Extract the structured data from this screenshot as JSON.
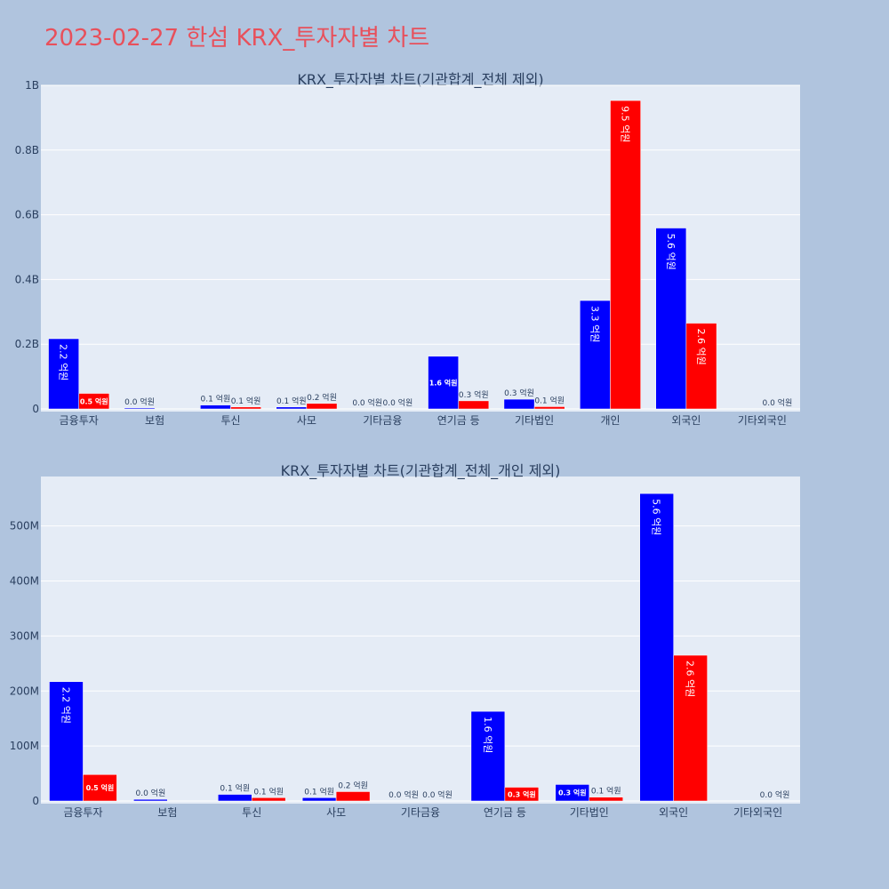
{
  "page": {
    "title": "2023-02-27 한섬 KRX_투자자별 차트"
  },
  "colors": {
    "background": "#b0c4de",
    "plot_bg": "#e5ecf6",
    "buy": "#0000ff",
    "sell": "#ff0000",
    "title": "#e8505b",
    "grid": "#ffffff",
    "text": "#2a3f5f"
  },
  "chart_data": [
    {
      "type": "bar",
      "title": "KRX_투자자별 차트(기관합계_전체 제외)",
      "categories": [
        "금융투자",
        "보험",
        "투신",
        "사모",
        "기타금융",
        "연기금 등",
        "기타법인",
        "개인",
        "외국인",
        "기타외국인"
      ],
      "series": [
        {
          "color": "#0000ff",
          "values": [
            217000000,
            3000000,
            12000000,
            6000000,
            0,
            163000000,
            30000000,
            335000000,
            559000000,
            0
          ],
          "labels": [
            "2.2 억원",
            "0.0 억원",
            "0.1 억원",
            "0.1 억원",
            "0.0 억원",
            "1.6 억원",
            "0.3 억원",
            "3.3 억원",
            "5.6 억원",
            ""
          ]
        },
        {
          "color": "#ff0000",
          "values": [
            48000000,
            0,
            6000000,
            17000000,
            0,
            25000000,
            7000000,
            953000000,
            265000000,
            0
          ],
          "labels": [
            "0.5 억원",
            "",
            "0.1 억원",
            "0.2 억원",
            "0.0 억원",
            "0.3 억원",
            "0.1 억원",
            "9.5 억원",
            "2.6 억원",
            "0.0 억원"
          ]
        }
      ],
      "yticks": [
        0,
        200000000,
        400000000,
        600000000,
        800000000,
        1000000000
      ],
      "yticklabels": [
        "0",
        "0.2B",
        "0.4B",
        "0.6B",
        "0.8B",
        "1B"
      ],
      "ylim": [
        0,
        1000000000
      ],
      "grid": true
    },
    {
      "type": "bar",
      "title": "KRX_투자자별 차트(기관합계_전체_개인 제외)",
      "categories": [
        "금융투자",
        "보험",
        "투신",
        "사모",
        "기타금융",
        "연기금 등",
        "기타법인",
        "외국인",
        "기타외국인"
      ],
      "series": [
        {
          "color": "#0000ff",
          "values": [
            217000000,
            3000000,
            12000000,
            6000000,
            0,
            163000000,
            30000000,
            559000000,
            0
          ],
          "labels": [
            "2.2 억원",
            "0.0 억원",
            "0.1 억원",
            "0.1 억원",
            "0.0 억원",
            "1.6 억원",
            "0.3 억원",
            "5.6 억원",
            ""
          ]
        },
        {
          "color": "#ff0000",
          "values": [
            48000000,
            0,
            6000000,
            17000000,
            0,
            25000000,
            7000000,
            265000000,
            0
          ],
          "labels": [
            "0.5 억원",
            "",
            "0.1 억원",
            "0.2 억원",
            "0.0 억원",
            "0.3 억원",
            "0.1 억원",
            "2.6 억원",
            "0.0 억원"
          ]
        }
      ],
      "yticks": [
        0,
        100000000,
        200000000,
        300000000,
        400000000,
        500000000
      ],
      "yticklabels": [
        "0",
        "100M",
        "200M",
        "300M",
        "400M",
        "500M"
      ],
      "ylim": [
        0,
        590000000
      ],
      "grid": true
    }
  ]
}
